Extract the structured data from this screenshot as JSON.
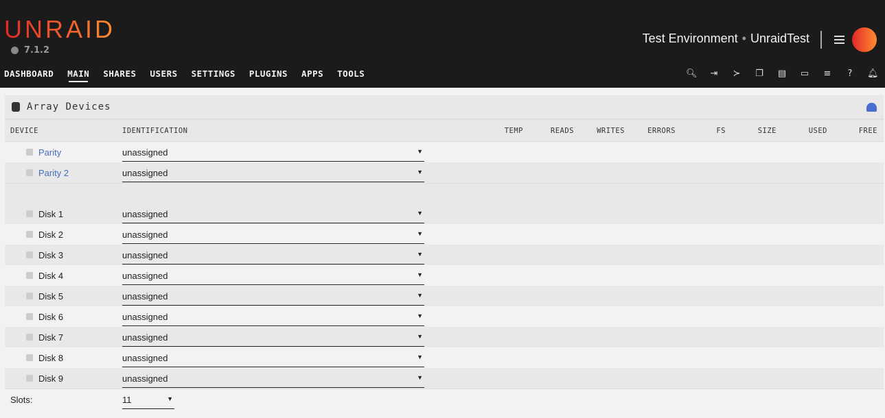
{
  "header": {
    "logo": "UNRAID",
    "version": "7.1.2",
    "server_description": "Test Environment",
    "server_name": "UnraidTest",
    "nav": [
      "DASHBOARD",
      "MAIN",
      "SHARES",
      "USERS",
      "SETTINGS",
      "PLUGINS",
      "APPS",
      "TOOLS"
    ],
    "active_nav": "MAIN",
    "icons": [
      "search-icon",
      "logout-icon",
      "terminal-icon",
      "copy-icon",
      "feedback-icon",
      "display-icon",
      "log-icon",
      "help-icon",
      "bell-icon"
    ]
  },
  "panel": {
    "title": "Array Devices",
    "columns": [
      "DEVICE",
      "IDENTIFICATION",
      "TEMP",
      "READS",
      "WRITES",
      "ERRORS",
      "FS",
      "SIZE",
      "USED",
      "FREE"
    ],
    "parity": [
      {
        "name": "Parity",
        "value": "unassigned"
      },
      {
        "name": "Parity 2",
        "value": "unassigned"
      }
    ],
    "disks": [
      {
        "name": "Disk 1",
        "value": "unassigned"
      },
      {
        "name": "Disk 2",
        "value": "unassigned"
      },
      {
        "name": "Disk 3",
        "value": "unassigned"
      },
      {
        "name": "Disk 4",
        "value": "unassigned"
      },
      {
        "name": "Disk 5",
        "value": "unassigned"
      },
      {
        "name": "Disk 6",
        "value": "unassigned"
      },
      {
        "name": "Disk 7",
        "value": "unassigned"
      },
      {
        "name": "Disk 8",
        "value": "unassigned"
      },
      {
        "name": "Disk 9",
        "value": "unassigned"
      }
    ],
    "slots_label": "Slots:",
    "slots_value": "11"
  },
  "colors": {
    "accent_start": "#e22828",
    "accent_end": "#ff8c2f",
    "link": "#486dba",
    "header_bg": "#1c1b1b"
  }
}
